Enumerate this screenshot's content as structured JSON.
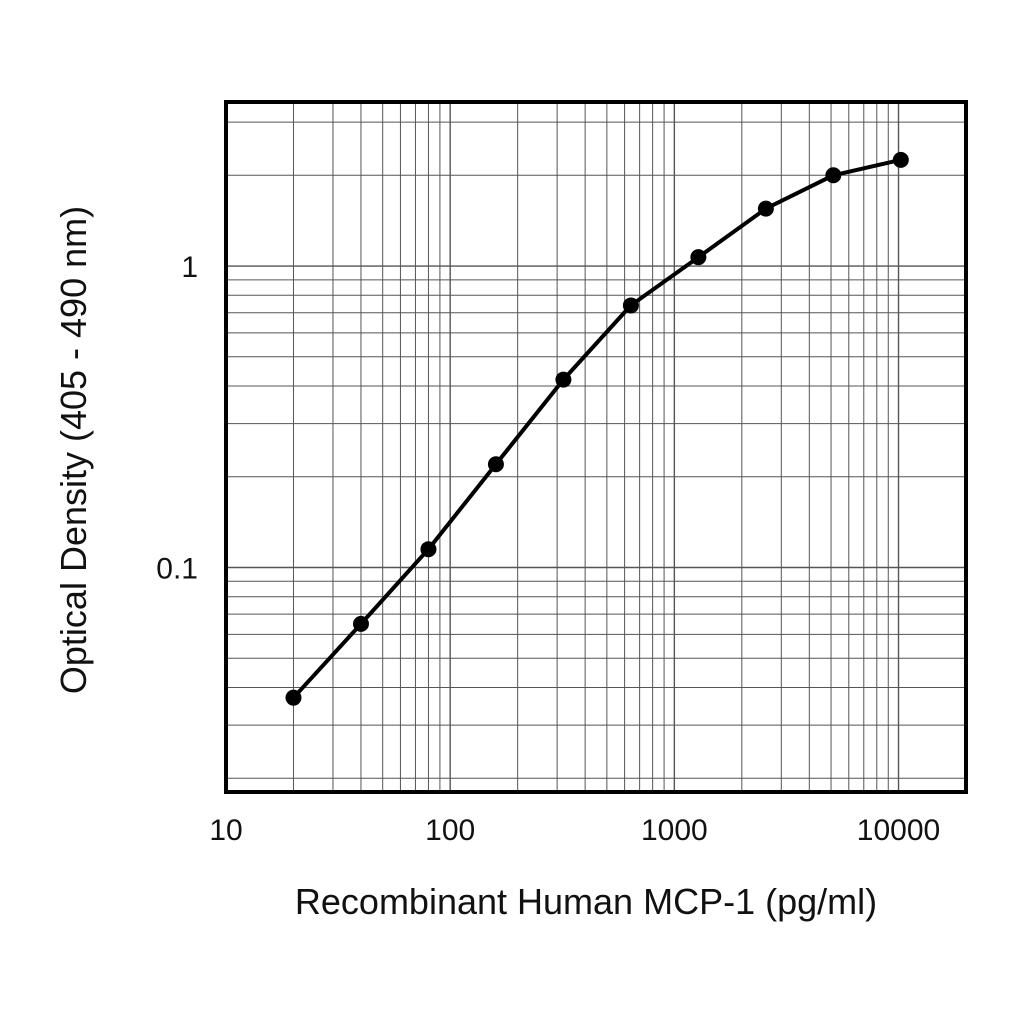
{
  "chart_data": {
    "type": "line",
    "title": "",
    "xlabel": "Recombinant Human MCP-1 (pg/ml)",
    "ylabel": "Optical Density (405 - 490 nm)",
    "x_scale": "log",
    "y_scale": "log",
    "xlim": [
      10,
      20000
    ],
    "ylim": [
      0.018,
      3.5
    ],
    "x_ticks": [
      {
        "value": 10,
        "label": "10"
      },
      {
        "value": 100,
        "label": "100"
      },
      {
        "value": 1000,
        "label": "1000"
      },
      {
        "value": 10000,
        "label": "10000"
      }
    ],
    "y_ticks": [
      {
        "value": 0.1,
        "label": "0.1"
      },
      {
        "value": 1,
        "label": "1"
      }
    ],
    "grid": true,
    "legend": "none",
    "series": [
      {
        "x": [
          20,
          40,
          80,
          160,
          320,
          640,
          1280,
          2560,
          5120,
          10240
        ],
        "y": [
          0.037,
          0.065,
          0.115,
          0.22,
          0.42,
          0.74,
          1.07,
          1.55,
          2.0,
          2.25
        ],
        "color": "#000000",
        "marker": "circle"
      }
    ]
  }
}
